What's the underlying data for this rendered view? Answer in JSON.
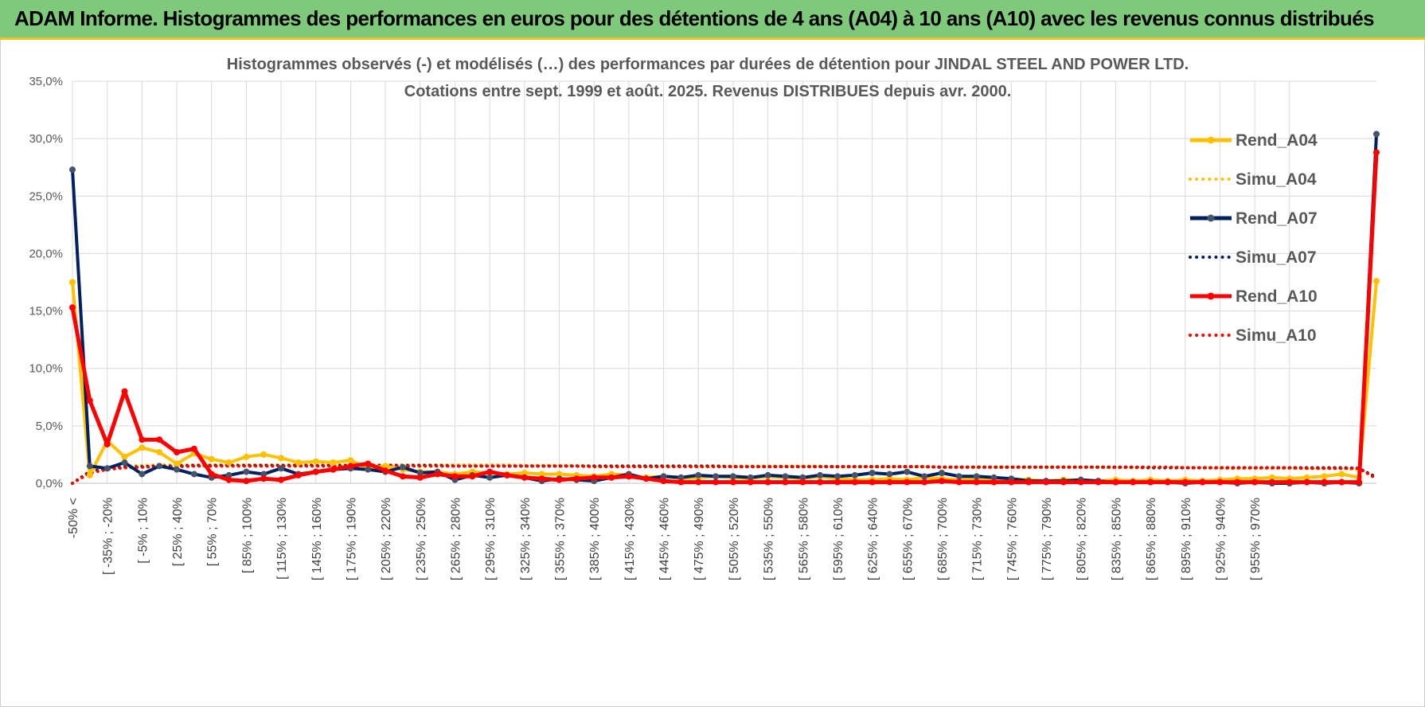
{
  "banner": {
    "title": "ADAM Informe. Histogrammes des performances en euros pour des détentions de 4 ans (A04) à 10 ans (A10) avec les revenus connus distribués"
  },
  "colors": {
    "banner_bg": "#7fc97a",
    "A04": "#ffc000",
    "A07": "#002060",
    "A07_marker": "#44546a",
    "A10": "#ff0000"
  },
  "chart_data": {
    "type": "line",
    "title": "Histogrammes observés (-) et modélisés (…) des performances par durées de détention pour JINDAL STEEL AND POWER LTD.",
    "subtitle": "Cotations entre sept. 1999 et août. 2025. Revenus DISTRIBUES depuis avr. 2000.",
    "y_ticks": [
      "0,0%",
      "5,0%",
      "10,0%",
      "15,0%",
      "20,0%",
      "25,0%",
      "30,0%",
      "35,0%"
    ],
    "ylim": [
      0,
      35
    ],
    "grid": true,
    "legend_position": "right",
    "x_tick_labels": [
      "-50% <",
      "[ -35% ; -20%",
      "[ -5% ; 10%",
      "[ 25% ; 40%",
      "[ 55% ; 70%",
      "[ 85% ; 100%",
      "[ 115% ; 130%",
      "[ 145% ; 160%",
      "[ 175% ; 190%",
      "[ 205% ; 220%",
      "[ 235% ; 250%",
      "[ 265% ; 280%",
      "[ 295% ; 310%",
      "[ 325% ; 340%",
      "[ 355% ; 370%",
      "[ 385% ; 400%",
      "[ 415% ; 430%",
      "[ 445% ; 460%",
      "[ 475% ; 490%",
      "[ 505% ; 520%",
      "[ 535% ; 550%",
      "[ 565% ; 580%",
      "[ 595% ; 610%",
      "[ 625% ; 640%",
      "[ 655% ; 670%",
      "[ 685% ; 700%",
      "[ 715% ; 730%",
      "[ 745% ; 760%",
      "[ 775% ; 790%",
      "[ 805% ; 820%",
      "[ 835% ; 850%",
      "[ 865% ; 880%",
      "[ 895% ; 910%",
      "[ 925% ; 940%",
      "[ 955% ; 970%"
    ],
    "series": [
      {
        "name": "Rend_A04",
        "style": "solid",
        "values": [
          17.5,
          0.7,
          3.7,
          2.3,
          3.1,
          2.7,
          1.7,
          2.6,
          2.1,
          1.8,
          2.3,
          2.5,
          2.2,
          1.8,
          1.9,
          1.8,
          2.0,
          1.3,
          1.5,
          1.2,
          1.0,
          1.0,
          0.8,
          1.0,
          0.9,
          0.8,
          0.9,
          0.8,
          0.8,
          0.7,
          0.6,
          0.8,
          0.7,
          0.5,
          0.6,
          0.4,
          0.5,
          0.6,
          0.5,
          0.4,
          0.6,
          0.5,
          0.4,
          0.6,
          0.4,
          0.3,
          0.3,
          0.4,
          0.3,
          0.5,
          0.4,
          0.3,
          0.4,
          0.3,
          0.4,
          0.3,
          0.2,
          0.3,
          0.3,
          0.2,
          0.3,
          0.2,
          0.3,
          0.2,
          0.3,
          0.2,
          0.3,
          0.4,
          0.4,
          0.5,
          0.4,
          0.5,
          0.6,
          0.8,
          0.5,
          17.6
        ]
      },
      {
        "name": "Simu_A04",
        "style": "dotted",
        "values": [
          0.0,
          1.1,
          1.4,
          1.5,
          1.55,
          1.6,
          1.6,
          1.6,
          1.6,
          1.6,
          1.6,
          1.6,
          1.6,
          1.6,
          1.6,
          1.6,
          1.6,
          1.6,
          1.6,
          1.6,
          1.6,
          1.6,
          1.6,
          1.6,
          1.6,
          1.6,
          1.55,
          1.55,
          1.55,
          1.55,
          1.5,
          1.5,
          1.5,
          1.5,
          1.5,
          1.5,
          1.5,
          1.5,
          1.5,
          1.5,
          1.5,
          1.5,
          1.5,
          1.5,
          1.45,
          1.45,
          1.45,
          1.45,
          1.45,
          1.45,
          1.4,
          1.4,
          1.4,
          1.4,
          1.4,
          1.4,
          1.4,
          1.4,
          1.4,
          1.4,
          1.35,
          1.35,
          1.35,
          1.35,
          1.35,
          1.35,
          1.3,
          1.3,
          1.3,
          1.3,
          1.3,
          1.3,
          1.3,
          1.3,
          1.2,
          0.6
        ]
      },
      {
        "name": "Rend_A07",
        "style": "solid",
        "values": [
          27.3,
          1.5,
          1.3,
          1.8,
          0.8,
          1.5,
          1.2,
          0.8,
          0.5,
          0.7,
          1.0,
          0.8,
          1.3,
          0.8,
          1.0,
          1.2,
          1.3,
          1.2,
          1.0,
          1.4,
          0.9,
          1.0,
          0.3,
          0.7,
          0.5,
          0.7,
          0.5,
          0.2,
          0.4,
          0.3,
          0.2,
          0.5,
          0.8,
          0.4,
          0.6,
          0.5,
          0.7,
          0.6,
          0.6,
          0.5,
          0.7,
          0.6,
          0.5,
          0.7,
          0.6,
          0.7,
          0.9,
          0.8,
          1.0,
          0.6,
          0.9,
          0.6,
          0.6,
          0.5,
          0.4,
          0.2,
          0.2,
          0.2,
          0.3,
          0.2,
          0.1,
          0.1,
          0.1,
          0.1,
          0.0,
          0.1,
          0.1,
          0.0,
          0.1,
          0.0,
          0.0,
          0.1,
          0.0,
          0.1,
          0.0,
          30.4
        ]
      },
      {
        "name": "Simu_A07",
        "style": "dotted",
        "values": [
          0.0,
          1.0,
          1.3,
          1.4,
          1.45,
          1.5,
          1.5,
          1.55,
          1.55,
          1.55,
          1.55,
          1.55,
          1.55,
          1.55,
          1.55,
          1.55,
          1.55,
          1.55,
          1.55,
          1.55,
          1.55,
          1.55,
          1.5,
          1.5,
          1.5,
          1.5,
          1.5,
          1.5,
          1.5,
          1.5,
          1.5,
          1.5,
          1.5,
          1.5,
          1.5,
          1.5,
          1.5,
          1.5,
          1.45,
          1.45,
          1.45,
          1.45,
          1.45,
          1.45,
          1.45,
          1.45,
          1.45,
          1.45,
          1.45,
          1.45,
          1.4,
          1.4,
          1.4,
          1.4,
          1.4,
          1.4,
          1.4,
          1.4,
          1.4,
          1.4,
          1.4,
          1.4,
          1.35,
          1.35,
          1.35,
          1.35,
          1.35,
          1.35,
          1.35,
          1.35,
          1.35,
          1.35,
          1.35,
          1.35,
          1.3,
          0.5
        ]
      },
      {
        "name": "Rend_A10",
        "style": "solid",
        "values": [
          15.3,
          7.2,
          3.4,
          8.0,
          3.8,
          3.8,
          2.7,
          3.0,
          0.8,
          0.3,
          0.2,
          0.4,
          0.3,
          0.7,
          1.0,
          1.2,
          1.5,
          1.7,
          1.1,
          0.6,
          0.5,
          0.8,
          0.6,
          0.6,
          1.0,
          0.7,
          0.5,
          0.4,
          0.3,
          0.4,
          0.5,
          0.5,
          0.6,
          0.4,
          0.2,
          0.1,
          0.1,
          0.1,
          0.1,
          0.1,
          0.1,
          0.1,
          0.1,
          0.1,
          0.1,
          0.1,
          0.1,
          0.1,
          0.1,
          0.1,
          0.2,
          0.1,
          0.1,
          0.1,
          0.1,
          0.1,
          0.1,
          0.1,
          0.1,
          0.1,
          0.1,
          0.1,
          0.1,
          0.1,
          0.1,
          0.1,
          0.1,
          0.1,
          0.1,
          0.1,
          0.1,
          0.1,
          0.1,
          0.1,
          0.1,
          28.8
        ]
      },
      {
        "name": "Simu_A10",
        "style": "dotted",
        "values": [
          0.0,
          0.9,
          1.2,
          1.35,
          1.4,
          1.45,
          1.45,
          1.5,
          1.5,
          1.5,
          1.5,
          1.5,
          1.5,
          1.5,
          1.5,
          1.5,
          1.5,
          1.5,
          1.5,
          1.5,
          1.5,
          1.5,
          1.5,
          1.5,
          1.5,
          1.5,
          1.5,
          1.5,
          1.5,
          1.5,
          1.45,
          1.45,
          1.45,
          1.45,
          1.45,
          1.45,
          1.45,
          1.45,
          1.45,
          1.45,
          1.45,
          1.45,
          1.45,
          1.45,
          1.45,
          1.45,
          1.45,
          1.45,
          1.45,
          1.45,
          1.4,
          1.4,
          1.4,
          1.4,
          1.4,
          1.4,
          1.4,
          1.4,
          1.4,
          1.4,
          1.4,
          1.4,
          1.4,
          1.4,
          1.35,
          1.35,
          1.35,
          1.35,
          1.35,
          1.35,
          1.35,
          1.3,
          1.3,
          1.3,
          1.3,
          0.4
        ]
      }
    ]
  }
}
